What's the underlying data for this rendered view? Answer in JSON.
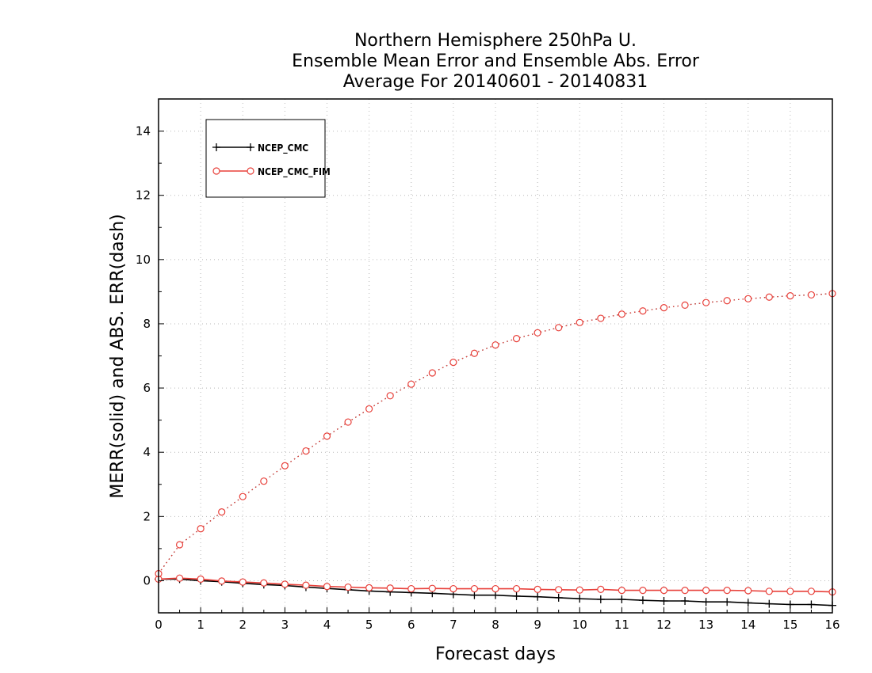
{
  "chart_data": {
    "type": "line",
    "title_lines": [
      "Northern Hemisphere 250hPa U.",
      "Ensemble Mean Error and Ensemble Abs. Error",
      "Average For 20140601 - 20140831"
    ],
    "xlabel": "Forecast days",
    "ylabel": "MERR(solid) and ABS. ERR(dash)",
    "xlim": [
      0,
      16
    ],
    "ylim": [
      -1,
      15
    ],
    "x_ticks": [
      0,
      1,
      2,
      3,
      4,
      5,
      6,
      7,
      8,
      9,
      10,
      11,
      12,
      13,
      14,
      15,
      16
    ],
    "y_ticks": [
      0,
      2,
      4,
      6,
      8,
      10,
      12,
      14
    ],
    "grid": true,
    "legend_position": "top-left",
    "x": [
      0,
      0.5,
      1,
      1.5,
      2,
      2.5,
      3,
      3.5,
      4,
      4.5,
      5,
      5.5,
      6,
      6.5,
      7,
      7.5,
      8,
      8.5,
      9,
      9.5,
      10,
      10.5,
      11,
      11.5,
      12,
      12.5,
      13,
      13.5,
      14,
      14.5,
      15,
      15.5,
      16
    ],
    "series": [
      {
        "name": "NCEP_CMC",
        "role": "mean error (solid)",
        "color": "#000000",
        "marker": "plus",
        "values": [
          0.05,
          0.05,
          0.0,
          -0.03,
          -0.08,
          -0.12,
          -0.15,
          -0.2,
          -0.24,
          -0.28,
          -0.32,
          -0.35,
          -0.37,
          -0.39,
          -0.42,
          -0.45,
          -0.45,
          -0.48,
          -0.5,
          -0.53,
          -0.56,
          -0.58,
          -0.58,
          -0.61,
          -0.63,
          -0.63,
          -0.66,
          -0.66,
          -0.69,
          -0.72,
          -0.74,
          -0.74,
          -0.77
        ]
      },
      {
        "name": "NCEP_CMC_FIM",
        "role": "mean error (solid)",
        "color": "#e8403a",
        "marker": "circle",
        "values": [
          0.05,
          0.08,
          0.05,
          -0.01,
          -0.04,
          -0.07,
          -0.11,
          -0.14,
          -0.18,
          -0.2,
          -0.22,
          -0.23,
          -0.25,
          -0.24,
          -0.25,
          -0.25,
          -0.25,
          -0.25,
          -0.27,
          -0.28,
          -0.29,
          -0.27,
          -0.3,
          -0.3,
          -0.3,
          -0.3,
          -0.3,
          -0.3,
          -0.31,
          -0.33,
          -0.33,
          -0.33,
          -0.35
        ]
      },
      {
        "name": "NCEP_CMC",
        "role": "absolute error (dash)",
        "color": "#000000",
        "marker": "none",
        "values": [
          0.22,
          1.12,
          1.62,
          2.14,
          2.62,
          3.1,
          3.58,
          4.04,
          4.5,
          4.94,
          5.35,
          5.76,
          6.12,
          6.47,
          6.8,
          7.08,
          7.34,
          7.54,
          7.72,
          7.88,
          8.04,
          8.17,
          8.3,
          8.4,
          8.5,
          8.58,
          8.66,
          8.72,
          8.78,
          8.83,
          8.87,
          8.9,
          8.94
        ]
      },
      {
        "name": "NCEP_CMC_FIM",
        "role": "absolute error (dash)",
        "color": "#e8403a",
        "marker": "circle",
        "values": [
          0.22,
          1.12,
          1.62,
          2.14,
          2.62,
          3.1,
          3.58,
          4.04,
          4.5,
          4.94,
          5.35,
          5.76,
          6.12,
          6.47,
          6.8,
          7.08,
          7.34,
          7.54,
          7.72,
          7.88,
          8.04,
          8.17,
          8.3,
          8.4,
          8.5,
          8.58,
          8.66,
          8.72,
          8.78,
          8.83,
          8.87,
          8.9,
          8.94
        ]
      }
    ]
  }
}
